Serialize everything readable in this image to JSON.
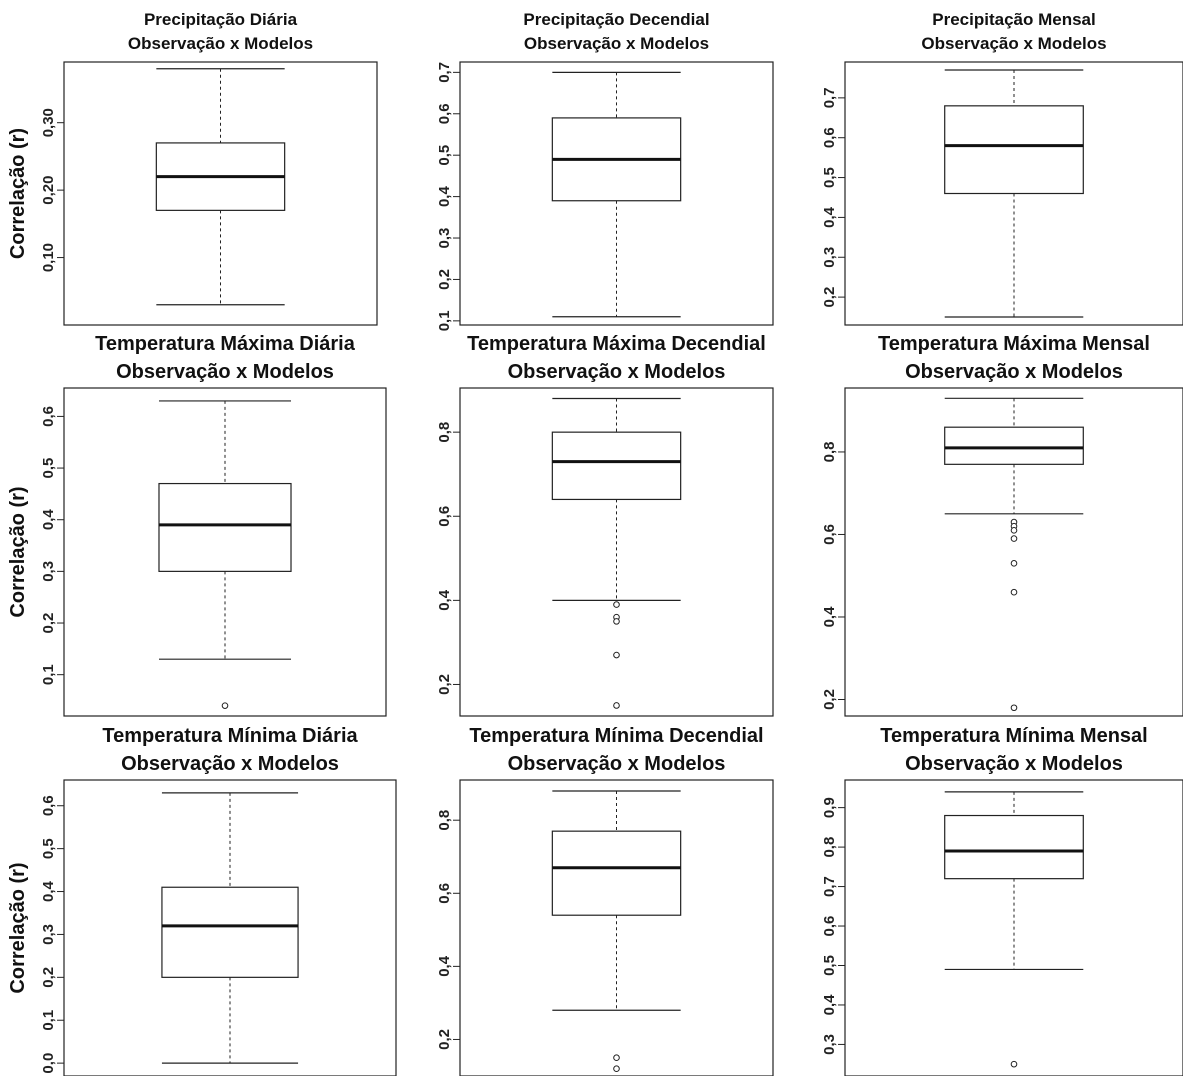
{
  "chart_data": [
    {
      "type": "box",
      "title": "Precipitação Diária",
      "subtitle": "Observação x Modelos",
      "ylabel": "Correlação (r)",
      "ylim": [
        0.0,
        0.39
      ],
      "yticks": [
        "0,10",
        "0,20",
        "0,30"
      ],
      "box": {
        "min": 0.03,
        "q1": 0.17,
        "median": 0.22,
        "q3": 0.27,
        "max": 0.38
      },
      "outliers": []
    },
    {
      "type": "box",
      "title": "Precipitação Decendial",
      "subtitle": "Observação x Modelos",
      "ylabel": "",
      "ylim": [
        0.09,
        0.725
      ],
      "yticks": [
        "0,1",
        "0,2",
        "0,3",
        "0,4",
        "0,5",
        "0,6",
        "0,7"
      ],
      "box": {
        "min": 0.11,
        "q1": 0.39,
        "median": 0.49,
        "q3": 0.59,
        "max": 0.7
      },
      "outliers": []
    },
    {
      "type": "box",
      "title": "Precipitação Mensal",
      "subtitle": "Observação x Modelos",
      "ylabel": "",
      "ylim": [
        0.13,
        0.79
      ],
      "yticks": [
        "0,2",
        "0,3",
        "0,4",
        "0,5",
        "0,6",
        "0,7"
      ],
      "box": {
        "min": 0.15,
        "q1": 0.46,
        "median": 0.58,
        "q3": 0.68,
        "max": 0.77
      },
      "outliers": []
    },
    {
      "type": "box",
      "title": "Temperatura Máxima Diária",
      "subtitle": "Observação x Modelos",
      "ylabel": "Correlação (r)",
      "ylim": [
        0.02,
        0.655
      ],
      "yticks": [
        "0,1",
        "0,2",
        "0,3",
        "0,4",
        "0,5",
        "0,6"
      ],
      "box": {
        "min": 0.13,
        "q1": 0.3,
        "median": 0.39,
        "q3": 0.47,
        "max": 0.63
      },
      "outliers": [
        0.04
      ]
    },
    {
      "type": "box",
      "title": "Temperatura Máxima Decendial",
      "subtitle": "Observação x Modelos",
      "ylabel": "",
      "ylim": [
        0.125,
        0.905
      ],
      "yticks": [
        "0,2",
        "0,4",
        "0,6",
        "0,8"
      ],
      "box": {
        "min": 0.4,
        "q1": 0.64,
        "median": 0.73,
        "q3": 0.8,
        "max": 0.88
      },
      "outliers": [
        0.39,
        0.36,
        0.35,
        0.27,
        0.15
      ]
    },
    {
      "type": "box",
      "title": "Temperatura Máxima Mensal",
      "subtitle": "Observação x Modelos",
      "ylabel": "",
      "ylim": [
        0.16,
        0.955
      ],
      "yticks": [
        "0,2",
        "0,4",
        "0,6",
        "0,8"
      ],
      "box": {
        "min": 0.65,
        "q1": 0.77,
        "median": 0.81,
        "q3": 0.86,
        "max": 0.93
      },
      "outliers": [
        0.63,
        0.62,
        0.61,
        0.59,
        0.53,
        0.46,
        0.18
      ]
    },
    {
      "type": "box",
      "title": "Temperatura Mínima Diária",
      "subtitle": "Observação x Modelos",
      "ylabel": "Correlação (r)",
      "ylim": [
        -0.03,
        0.66
      ],
      "yticks": [
        "0,0",
        "0,1",
        "0,2",
        "0,3",
        "0,4",
        "0,5",
        "0,6"
      ],
      "box": {
        "min": 0.0,
        "q1": 0.2,
        "median": 0.32,
        "q3": 0.41,
        "max": 0.63
      },
      "outliers": []
    },
    {
      "type": "box",
      "title": "Temperatura Mínima Decendial",
      "subtitle": "Observação x Modelos",
      "ylabel": "",
      "ylim": [
        0.1,
        0.91
      ],
      "yticks": [
        "0,2",
        "0,4",
        "0,6",
        "0,8"
      ],
      "box": {
        "min": 0.28,
        "q1": 0.54,
        "median": 0.67,
        "q3": 0.77,
        "max": 0.88
      },
      "outliers": [
        0.15,
        0.12
      ]
    },
    {
      "type": "box",
      "title": "Temperatura Mínima Mensal",
      "subtitle": "Observação x Modelos",
      "ylabel": "",
      "ylim": [
        0.22,
        0.97
      ],
      "yticks": [
        "0,3",
        "0,4",
        "0,5",
        "0,6",
        "0,7",
        "0,8",
        "0,9"
      ],
      "box": {
        "min": 0.49,
        "q1": 0.72,
        "median": 0.79,
        "q3": 0.88,
        "max": 0.94
      },
      "outliers": [
        0.25
      ]
    }
  ]
}
